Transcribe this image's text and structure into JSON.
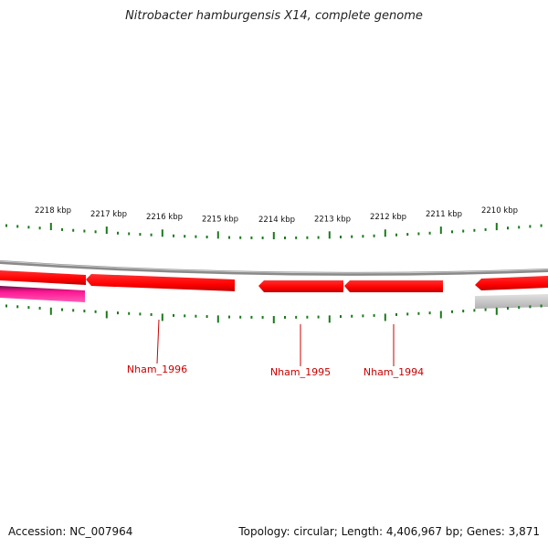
{
  "title": "Nitrobacter hamburgensis X14, complete genome",
  "footer": {
    "accession": "Accession: NC_007964",
    "summary": "Topology: circular; Length: 4,406,967 bp; Genes: 3,871"
  },
  "ruler": {
    "labels": [
      "2218 kbp",
      "2217 kbp",
      "2216 kbp",
      "2215 kbp",
      "2214 kbp",
      "2213 kbp",
      "2212 kbp",
      "2211 kbp",
      "2210 kbp"
    ]
  },
  "genes": [
    {
      "name": "gene-block-left",
      "label": ""
    },
    {
      "name": "gene-nham-1996",
      "label": "Nham_1996"
    },
    {
      "name": "gene-nham-1995",
      "label": "Nham_1995"
    },
    {
      "name": "gene-nham-1994",
      "label": "Nham_1994"
    },
    {
      "name": "gene-right",
      "label": ""
    }
  ],
  "colors": {
    "cds": "#ff0000",
    "cds_shadow": "#cc3333",
    "rna": "#ff1493",
    "rna_dark": "#7a1050",
    "backbone": "#8a8a8a",
    "other": "#bdbdbd",
    "tick": "#1a7a1a",
    "gene_label": "#cc0000"
  }
}
